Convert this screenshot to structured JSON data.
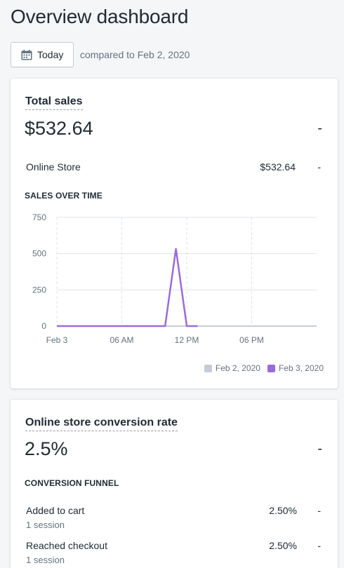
{
  "header": {
    "title": "Overview dashboard",
    "date_button_label": "Today",
    "compare_text": "compared to Feb 2, 2020"
  },
  "sales_card": {
    "title": "Total sales",
    "value": "$532.64",
    "change": "-",
    "rows": [
      {
        "label": "Online Store",
        "value": "$532.64",
        "change": "-"
      }
    ],
    "chart_heading": "SALES OVER TIME"
  },
  "conversion_card": {
    "title": "Online store conversion rate",
    "value": "2.5%",
    "change": "-",
    "funnel_heading": "CONVERSION FUNNEL",
    "funnel": [
      {
        "label": "Added to cart",
        "sessions": "1 session",
        "value": "2.50%",
        "change": "-"
      },
      {
        "label": "Reached checkout",
        "sessions": "1 session",
        "value": "2.50%",
        "change": "-"
      }
    ]
  },
  "colors": {
    "current": "#9c6ade",
    "previous": "#c4cdd5"
  },
  "chart_data": {
    "type": "line",
    "title": "SALES OVER TIME",
    "x_ticks": [
      "Feb 3",
      "06 AM",
      "12 PM",
      "06 PM"
    ],
    "y_ticks": [
      0,
      250,
      500,
      750
    ],
    "ylim": [
      0,
      750
    ],
    "x": [
      "00:00",
      "01:00",
      "02:00",
      "03:00",
      "04:00",
      "05:00",
      "06:00",
      "07:00",
      "08:00",
      "09:00",
      "10:00",
      "11:00",
      "12:00",
      "13:00",
      "14:00",
      "15:00",
      "16:00",
      "17:00",
      "18:00",
      "19:00",
      "20:00",
      "21:00",
      "22:00",
      "23:00"
    ],
    "series": [
      {
        "name": "Feb 2, 2020",
        "color": "#c4cdd5",
        "values": [
          0,
          0,
          0,
          0,
          0,
          0,
          0,
          0,
          0,
          0,
          0,
          0,
          0,
          0,
          0,
          0,
          0,
          0,
          0,
          0,
          0,
          0,
          0,
          0
        ]
      },
      {
        "name": "Feb 3, 2020",
        "color": "#9c6ade",
        "values": [
          0,
          0,
          0,
          0,
          0,
          0,
          0,
          0,
          0,
          0,
          0,
          532.64,
          0,
          0,
          null,
          null,
          null,
          null,
          null,
          null,
          null,
          null,
          null,
          null
        ]
      }
    ],
    "grid": true,
    "legend_position": "bottom-right"
  }
}
